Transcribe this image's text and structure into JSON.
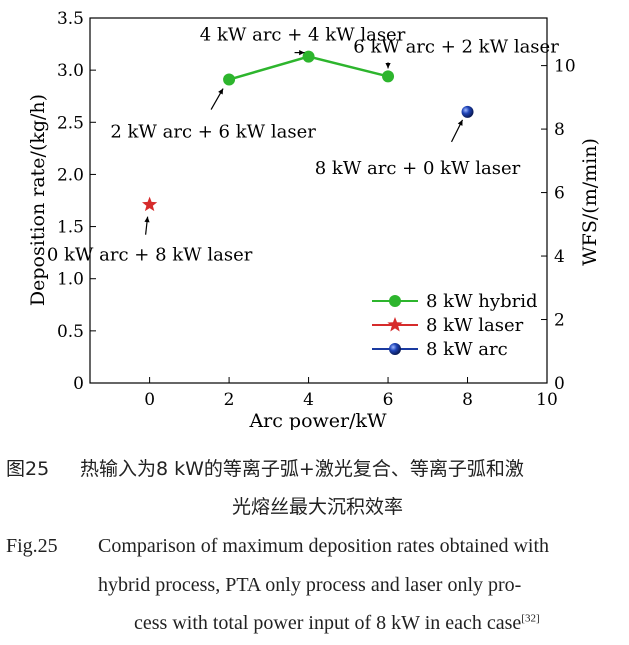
{
  "chart_data": {
    "type": "scatter",
    "xlabel": "Arc power/kW",
    "ylabel": "Deposition rate/(kg/h)",
    "y2label": "WFS/(m/min)",
    "xlim": [
      -1.5,
      10
    ],
    "ylim": [
      0,
      3.5
    ],
    "y2lim": [
      0,
      11.5
    ],
    "xticks": [
      "0",
      "2",
      "4",
      "6",
      "8",
      "10"
    ],
    "yticks": [
      "0",
      "0.5",
      "1.0",
      "1.5",
      "2.0",
      "2.5",
      "3.0",
      "3.5"
    ],
    "y2ticks": [
      "0",
      "2",
      "4",
      "6",
      "8",
      "10"
    ],
    "series": [
      {
        "name": "8 kW hybrid",
        "marker": "circle",
        "color": "#2db52d",
        "line": true,
        "x": [
          2,
          4,
          6
        ],
        "y": [
          2.91,
          3.13,
          2.94
        ]
      },
      {
        "name": "8 kW laser",
        "marker": "star",
        "color": "#d62b2b",
        "line": false,
        "x": [
          0
        ],
        "y": [
          1.71
        ]
      },
      {
        "name": "8 kW arc",
        "marker": "sphere",
        "color": "#1a3aa0",
        "line": false,
        "x": [
          8
        ],
        "y": [
          2.6
        ]
      }
    ],
    "annotations": [
      {
        "text": "4 kW arc + 4 kW laser",
        "x": 4,
        "y": 3.13
      },
      {
        "text": "6 kW arc + 2 kW laser",
        "x": 6,
        "y": 2.94
      },
      {
        "text": "2 kW arc + 6 kW laser",
        "x": 2,
        "y": 2.91
      },
      {
        "text": "8 kW arc + 0 kW laser",
        "x": 8,
        "y": 2.6
      },
      {
        "text": "0 kW arc + 8 kW laser",
        "x": 0,
        "y": 1.71
      }
    ],
    "legend": "bottom-right",
    "grid": false
  },
  "caption": {
    "cn_label": "图25",
    "cn_line1": "热输入为8 kW的等离子弧+激光复合、等离子弧和激",
    "cn_line2": "光熔丝最大沉积效率",
    "en_label": "Fig.25",
    "en_line1": "Comparison of maximum deposition rates obtained with",
    "en_line2": "hybrid process, PTA only process and laser only pro-",
    "en_line3": "cess with total power input of 8 kW in each case",
    "en_ref": "[32]"
  }
}
